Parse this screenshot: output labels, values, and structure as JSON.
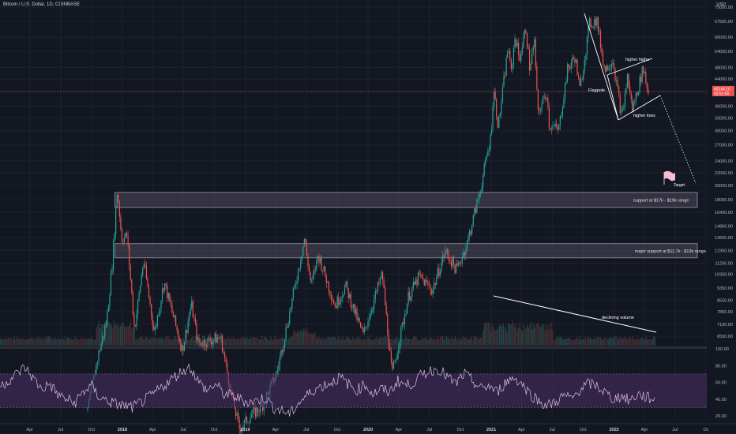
{
  "header": {
    "title": "Bitcoin / U.S. Dollar, 1D, COINBASE"
  },
  "chart_data": {
    "type": "candlestick",
    "price_axis": {
      "scale": "log",
      "unit_label": "USD",
      "ticks": [
        "75000.00",
        "67500.00",
        "60000.00",
        "54000.00",
        "48000.00",
        "44000.00",
        "40000.00",
        "36000.00",
        "33000.00",
        "30000.00",
        "27000.00",
        "24000.00",
        "22000.00",
        "20000.00",
        "18000.00",
        "16400.00",
        "14800.00",
        "13600.00",
        "12350.00",
        "11250.00",
        "10350.00",
        "9350.00",
        "8550.00",
        "7850.00",
        "7150.00",
        "6550.00"
      ],
      "current_price": "40144.10",
      "countdown": "02:51:50"
    },
    "rsi_axis": {
      "ticks": [
        "100.00",
        "80.00",
        "60.00",
        "40.00",
        "20.00"
      ],
      "upper_band": 70,
      "lower_band": 30
    },
    "time_axis": {
      "ticks": [
        "Apr",
        "Jul",
        "Oct",
        "2018",
        "Apr",
        "Jul",
        "Oct",
        "2019",
        "Apr",
        "Jul",
        "Oct",
        "2020",
        "Apr",
        "Jul",
        "Oct",
        "2021",
        "Apr",
        "Jul",
        "Oct",
        "2022",
        "Apr",
        "Jul",
        "Oc"
      ]
    },
    "price_path": [
      [
        "2017-09-20",
        3800
      ],
      [
        "2017-10-20",
        5600
      ],
      [
        "2017-11-15",
        7300
      ],
      [
        "2017-12-01",
        10900
      ],
      [
        "2017-12-17",
        19500
      ],
      [
        "2017-12-30",
        13500
      ],
      [
        "2018-01-15",
        13800
      ],
      [
        "2018-02-06",
        6900
      ],
      [
        "2018-03-05",
        11500
      ],
      [
        "2018-04-06",
        6700
      ],
      [
        "2018-05-05",
        9800
      ],
      [
        "2018-06-28",
        5900
      ],
      [
        "2018-07-25",
        8300
      ],
      [
        "2018-08-14",
        6200
      ],
      [
        "2018-10-20",
        6500
      ],
      [
        "2018-11-20",
        4300
      ],
      [
        "2018-12-15",
        3300
      ],
      [
        "2019-01-15",
        3600
      ],
      [
        "2019-02-20",
        3900
      ],
      [
        "2019-04-05",
        5000
      ],
      [
        "2019-05-15",
        8000
      ],
      [
        "2019-06-26",
        13500
      ],
      [
        "2019-07-16",
        9500
      ],
      [
        "2019-08-06",
        12000
      ],
      [
        "2019-09-25",
        8200
      ],
      [
        "2019-10-26",
        9500
      ],
      [
        "2019-12-17",
        6600
      ],
      [
        "2020-02-12",
        10400
      ],
      [
        "2020-03-12",
        4900
      ],
      [
        "2020-04-30",
        8800
      ],
      [
        "2020-06-01",
        10200
      ],
      [
        "2020-07-10",
        9200
      ],
      [
        "2020-08-17",
        12300
      ],
      [
        "2020-09-20",
        10700
      ],
      [
        "2020-10-21",
        13000
      ],
      [
        "2020-11-30",
        19500
      ],
      [
        "2020-12-31",
        29000
      ],
      [
        "2021-01-08",
        41000
      ],
      [
        "2021-01-22",
        31000
      ],
      [
        "2021-02-21",
        57000
      ],
      [
        "2021-02-28",
        45000
      ],
      [
        "2021-03-13",
        61000
      ],
      [
        "2021-03-25",
        51000
      ],
      [
        "2021-04-14",
        64000
      ],
      [
        "2021-04-25",
        48000
      ],
      [
        "2021-05-10",
        58000
      ],
      [
        "2021-05-19",
        34000
      ],
      [
        "2021-06-15",
        40000
      ],
      [
        "2021-06-22",
        31500
      ],
      [
        "2021-07-20",
        30000
      ],
      [
        "2021-08-15",
        47000
      ],
      [
        "2021-09-07",
        52000
      ],
      [
        "2021-09-21",
        40500
      ],
      [
        "2021-10-20",
        66000
      ],
      [
        "2021-11-10",
        68500
      ],
      [
        "2021-12-04",
        47000
      ],
      [
        "2021-12-28",
        51000
      ],
      [
        "2022-01-24",
        33000
      ],
      [
        "2022-02-10",
        45000
      ],
      [
        "2022-02-24",
        35000
      ],
      [
        "2022-03-29",
        48000
      ],
      [
        "2022-04-11",
        40000
      ],
      [
        "2022-04-13",
        40144
      ]
    ],
    "rsi_values": [
      55,
      62,
      70,
      78,
      65,
      52,
      58,
      45,
      40,
      35,
      48,
      56,
      42,
      38,
      34,
      32,
      30,
      36,
      42,
      50,
      58,
      66,
      74,
      78,
      60,
      50,
      58,
      46,
      44,
      40,
      36,
      38,
      42,
      30,
      26,
      22,
      35,
      44,
      52,
      56,
      60,
      66,
      58,
      50,
      58,
      46,
      52,
      48,
      62,
      56,
      60,
      70,
      74,
      76,
      66,
      58,
      70,
      62,
      52,
      56,
      48,
      60,
      66,
      58,
      46,
      38,
      32,
      36,
      44,
      40,
      52,
      58,
      56,
      48,
      40,
      44,
      38,
      46,
      42,
      40
    ],
    "support_zones": [
      {
        "label": "support at $17k - $19k range",
        "low": 17000,
        "high": 19000,
        "start": "2017-12-10"
      },
      {
        "label": "major  support at $11.7k - $13k range",
        "low": 11700,
        "high": 13000,
        "start": "2017-12-10"
      }
    ],
    "annotations": {
      "flagpole": "Flagpole",
      "higher_highs": "higher highs",
      "higher_lows": "higher lows",
      "target": "Target",
      "declining_volume": "declining volume"
    },
    "target_price": 20000,
    "colors": {
      "background": "#131722",
      "up": "#26a69a",
      "down": "#ef5350",
      "grid": "#1e222d",
      "zone_fill": "#5a5566",
      "zone_stroke": "#9c94a8",
      "rsi_line": "#e1bee7",
      "rsi_band": "#4a2f66",
      "current_price": "#ef5350",
      "annotation": "#ffffff",
      "target_flag": "#f8bbd0"
    }
  }
}
